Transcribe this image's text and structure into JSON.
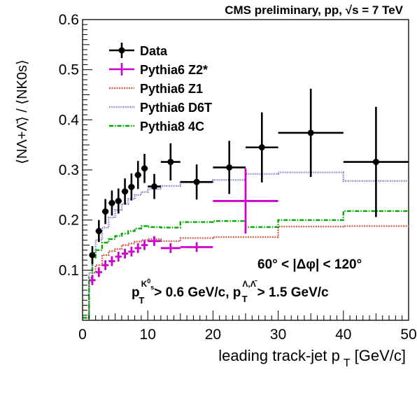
{
  "chart_data": {
    "type": "scatter",
    "header": "CMS preliminary, pp, √s = 7 TeV",
    "xlabel": "leading track-jet p T [GeV/c]",
    "ylabel": "⟨NΛ+Λ̄⟩ / ⟨NK0s⟩",
    "xlim": [
      0,
      50
    ],
    "ylim": [
      0,
      0.6
    ],
    "x_ticks": [
      0,
      10,
      20,
      30,
      40,
      50
    ],
    "y_ticks": [
      0.1,
      0.2,
      0.3,
      0.4,
      0.5,
      0.6
    ],
    "x_tick_labels": [
      "0",
      "10",
      "20",
      "30",
      "40",
      "50"
    ],
    "y_tick_labels": [
      "0.1",
      "0.2",
      "0.3",
      "0.4",
      "0.5",
      "0.6"
    ],
    "annotations": [
      "60° < |Δφ| < 120°",
      "p_T^{K0s} > 0.6 GeV/c, p_T^{Λ,Λ̄} > 1.5 GeV/c"
    ],
    "annotation_text": {
      "angle": "60° < |Δφ| < 120°",
      "pt_p": "p",
      "pt_t1": "T",
      "pt_sup1": "K",
      "pt_sup1_0": "0",
      "pt_sup1_s": "s",
      "pt_mid": "> 0.6 GeV/c, p",
      "pt_t2": "T",
      "pt_sup2": "Λ,Λ̄",
      "pt_end": "> 1.5 GeV/c"
    },
    "xlabel_parts": {
      "main": "leading track-jet p",
      "sub": "T",
      "unit": "[GeV/c]"
    },
    "legend_placement": "top-left",
    "series": [
      {
        "name": "Data",
        "style": "points",
        "color": "#000000",
        "points": [
          {
            "x": 1.5,
            "y": 0.13,
            "xerr": 0.5,
            "yerr": 0.018
          },
          {
            "x": 2.5,
            "y": 0.178,
            "xerr": 0.5,
            "yerr": 0.022
          },
          {
            "x": 3.5,
            "y": 0.217,
            "xerr": 0.5,
            "yerr": 0.025
          },
          {
            "x": 4.5,
            "y": 0.234,
            "xerr": 0.5,
            "yerr": 0.025
          },
          {
            "x": 5.5,
            "y": 0.238,
            "xerr": 0.5,
            "yerr": 0.025
          },
          {
            "x": 6.5,
            "y": 0.257,
            "xerr": 0.5,
            "yerr": 0.026
          },
          {
            "x": 7.5,
            "y": 0.266,
            "xerr": 0.5,
            "yerr": 0.027
          },
          {
            "x": 8.5,
            "y": 0.29,
            "xerr": 0.5,
            "yerr": 0.028
          },
          {
            "x": 9.5,
            "y": 0.303,
            "xerr": 0.5,
            "yerr": 0.029
          },
          {
            "x": 11.0,
            "y": 0.267,
            "xerr": 1.0,
            "yerr": 0.025
          },
          {
            "x": 13.5,
            "y": 0.316,
            "xerr": 1.5,
            "yerr": 0.037
          },
          {
            "x": 17.5,
            "y": 0.276,
            "xerr": 2.5,
            "yerr": 0.035
          },
          {
            "x": 22.5,
            "y": 0.305,
            "xerr": 2.5,
            "yerr": 0.053
          },
          {
            "x": 27.5,
            "y": 0.345,
            "xerr": 2.5,
            "yerr": 0.07
          },
          {
            "x": 35.0,
            "y": 0.374,
            "xerr": 5.0,
            "yerr": 0.088
          },
          {
            "x": 45.0,
            "y": 0.316,
            "xerr": 5.0,
            "yerr": 0.11
          }
        ]
      },
      {
        "name": "Pythia6 Z2*",
        "style": "points-noerr",
        "color": "#cc00cc",
        "points": [
          {
            "x": 1.5,
            "y": 0.08,
            "xerr": 0.5
          },
          {
            "x": 2.5,
            "y": 0.096,
            "xerr": 0.5
          },
          {
            "x": 3.5,
            "y": 0.11,
            "xerr": 0.5
          },
          {
            "x": 4.5,
            "y": 0.118,
            "xerr": 0.5
          },
          {
            "x": 5.5,
            "y": 0.127,
            "xerr": 0.5
          },
          {
            "x": 6.5,
            "y": 0.133,
            "xerr": 0.5
          },
          {
            "x": 7.5,
            "y": 0.137,
            "xerr": 0.5
          },
          {
            "x": 8.5,
            "y": 0.144,
            "xerr": 0.5
          },
          {
            "x": 9.5,
            "y": 0.15,
            "xerr": 0.5
          },
          {
            "x": 11.0,
            "y": 0.158,
            "xerr": 1.0
          },
          {
            "x": 13.5,
            "y": 0.144,
            "xerr": 1.5
          },
          {
            "x": 17.5,
            "y": 0.146,
            "xerr": 2.5
          },
          {
            "x": 25.0,
            "y": 0.238,
            "xerr": 5.0,
            "yerr": 0.065
          }
        ]
      },
      {
        "name": "Pythia6 Z1",
        "style": "step",
        "color": "#cc6655",
        "dash": "2,1.5",
        "edges": [
          0,
          1,
          1.5,
          2,
          3,
          4,
          5,
          6,
          7,
          8,
          9,
          10,
          12,
          15,
          20,
          25,
          30,
          40,
          50
        ],
        "values": [
          0.005,
          0.076,
          0.095,
          0.11,
          0.13,
          0.138,
          0.142,
          0.15,
          0.153,
          0.157,
          0.16,
          0.162,
          0.158,
          0.164,
          0.166,
          0.166,
          0.187,
          0.188,
          0.19
        ]
      },
      {
        "name": "Pythia6 D6T",
        "style": "step",
        "color": "#6666cc",
        "dash": "1,1.5",
        "edges": [
          0,
          1,
          1.5,
          2,
          3,
          4,
          5,
          6,
          7,
          8,
          9,
          10,
          12,
          15,
          20,
          25,
          30,
          40,
          50
        ],
        "values": [
          0.005,
          0.095,
          0.135,
          0.16,
          0.185,
          0.205,
          0.22,
          0.232,
          0.242,
          0.25,
          0.256,
          0.262,
          0.268,
          0.275,
          0.28,
          0.292,
          0.295,
          0.278,
          0.28
        ]
      },
      {
        "name": "Pythia8 4C",
        "style": "step",
        "color": "#00aa00",
        "dash": "6,2,1.5,2",
        "edges": [
          0,
          1,
          1.5,
          2,
          3,
          4,
          5,
          6,
          7,
          8,
          9,
          10,
          12,
          15,
          20,
          25,
          30,
          40,
          50
        ],
        "values": [
          0.005,
          0.085,
          0.125,
          0.14,
          0.155,
          0.162,
          0.168,
          0.173,
          0.178,
          0.183,
          0.188,
          0.186,
          0.185,
          0.196,
          0.198,
          0.186,
          0.2,
          0.218,
          0.219
        ]
      }
    ]
  }
}
